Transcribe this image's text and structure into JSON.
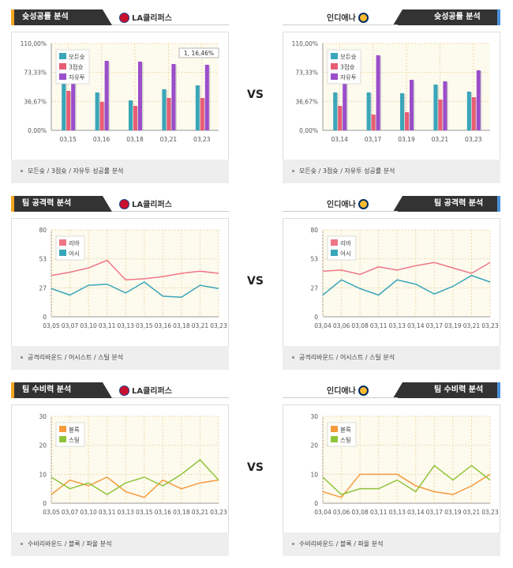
{
  "vs_label": "VS",
  "colors": {
    "header_dark": "#333333",
    "accent_left": "#f5a623",
    "accent_right": "#4a90d9",
    "plot_bg": "#fdfaee",
    "grid": "#f0d9a8"
  },
  "panels": [
    {
      "id": "p1",
      "side": "left",
      "title": "슛성공률 분석",
      "team": "LA클리퍼스",
      "team_icon": "clippers-logo-icon",
      "caption": "모든슛 / 3점슛 / 자유투 성공률 분석"
    },
    {
      "id": "p2",
      "side": "right",
      "title": "슛성공률 분석",
      "team": "인디애나",
      "team_icon": "pacers-logo-icon",
      "caption": "모든슛 / 3점슛 / 자유투 성공률 분석"
    },
    {
      "id": "p3",
      "side": "left",
      "title": "팀 공격력 분석",
      "team": "LA클리퍼스",
      "team_icon": "clippers-logo-icon",
      "caption": "공격리바운드 / 어시스트 / 스틸 분석"
    },
    {
      "id": "p4",
      "side": "right",
      "title": "팀 공격력 분석",
      "team": "인디애나",
      "team_icon": "pacers-logo-icon",
      "caption": "공격리바운드 / 어시스트 / 스틸 분석"
    },
    {
      "id": "p5",
      "side": "left",
      "title": "팀 수비력 분석",
      "team": "LA클리퍼스",
      "team_icon": "clippers-logo-icon",
      "caption": "수비리바운드 / 블록 / 파울 분석"
    },
    {
      "id": "p6",
      "side": "right",
      "title": "팀 수비력 분석",
      "team": "인디애나",
      "team_icon": "pacers-logo-icon",
      "caption": "수비리바운드 / 블록 / 파울 분석"
    }
  ],
  "chart_data": [
    {
      "type": "bar",
      "categories": [
        "03,15",
        "03,16",
        "03,18",
        "03,21",
        "03,23"
      ],
      "yticks": [
        "0,00%",
        "36,67%",
        "73,33%",
        "110,00%"
      ],
      "ylim": [
        0,
        110
      ],
      "grid": true,
      "legend": "top-left",
      "tooltip": "1, 16,46%",
      "series": [
        {
          "name": "모든슛",
          "color": "#3aa6b9",
          "values": [
            60,
            48,
            38,
            52,
            57
          ]
        },
        {
          "name": "3점슛",
          "color": "#e85d75",
          "values": [
            50,
            36,
            31,
            41,
            41
          ]
        },
        {
          "name": "자유투",
          "color": "#9b4dca",
          "values": [
            95,
            88,
            87,
            84,
            83
          ]
        }
      ]
    },
    {
      "type": "bar",
      "categories": [
        "03,14",
        "03,17",
        "03,19",
        "03,21",
        "03,23"
      ],
      "yticks": [
        "0,00%",
        "36,67%",
        "73,33%",
        "110,00%"
      ],
      "ylim": [
        0,
        110
      ],
      "grid": true,
      "legend": "top-left",
      "series": [
        {
          "name": "모든슛",
          "color": "#3aa6b9",
          "values": [
            48,
            48,
            47,
            58,
            49
          ]
        },
        {
          "name": "3점슛",
          "color": "#e85d75",
          "values": [
            31,
            20,
            23,
            39,
            42
          ]
        },
        {
          "name": "자유투",
          "color": "#9b4dca",
          "values": [
            68,
            95,
            64,
            62,
            76
          ]
        }
      ]
    },
    {
      "type": "line",
      "categories": [
        "03,05",
        "03,07",
        "03,10",
        "03,11",
        "03,13",
        "03,15",
        "03,16",
        "03,18",
        "03,21",
        "03,23"
      ],
      "yticks": [
        "0",
        "27",
        "53",
        "80"
      ],
      "ylim": [
        0,
        80
      ],
      "grid": true,
      "legend": "top-left",
      "series": [
        {
          "name": "리바",
          "color": "#ee7785",
          "values": [
            38,
            41,
            45,
            52,
            34,
            35,
            37,
            40,
            42,
            40
          ]
        },
        {
          "name": "어시",
          "color": "#3aa6b9",
          "values": [
            26,
            20,
            29,
            30,
            22,
            32,
            19,
            18,
            29,
            26
          ]
        }
      ]
    },
    {
      "type": "line",
      "categories": [
        "03,04",
        "03,06",
        "03,08",
        "03,11",
        "03,13",
        "03,14",
        "03,17",
        "03,19",
        "03,21",
        "03,23"
      ],
      "yticks": [
        "0",
        "27",
        "53",
        "80"
      ],
      "ylim": [
        0,
        80
      ],
      "grid": true,
      "legend": "top-left",
      "series": [
        {
          "name": "리바",
          "color": "#ee7785",
          "values": [
            42,
            43,
            39,
            46,
            43,
            47,
            50,
            45,
            40,
            50
          ]
        },
        {
          "name": "어시",
          "color": "#3aa6b9",
          "values": [
            20,
            34,
            26,
            20,
            34,
            30,
            21,
            28,
            38,
            32
          ]
        }
      ]
    },
    {
      "type": "line",
      "categories": [
        "03,05",
        "03,07",
        "03,10",
        "03,11",
        "03,13",
        "03,15",
        "03,16",
        "03,18",
        "03,21",
        "03,23"
      ],
      "yticks": [
        "0",
        "10",
        "20",
        "30"
      ],
      "ylim": [
        0,
        30
      ],
      "grid": true,
      "legend": "top-left",
      "series": [
        {
          "name": "블록",
          "color": "#f59a3c",
          "values": [
            3,
            8,
            6,
            9,
            4,
            2,
            8,
            5,
            7,
            8
          ]
        },
        {
          "name": "스틸",
          "color": "#8fc43a",
          "values": [
            9,
            5,
            7,
            3,
            7,
            9,
            6,
            10,
            15,
            8
          ]
        }
      ]
    },
    {
      "type": "line",
      "categories": [
        "03,04",
        "03,06",
        "03,08",
        "03,11",
        "03,13",
        "03,14",
        "03,17",
        "03,19",
        "03,21",
        "03,23"
      ],
      "yticks": [
        "0",
        "10",
        "20",
        "30"
      ],
      "ylim": [
        0,
        30
      ],
      "grid": true,
      "legend": "top-left",
      "series": [
        {
          "name": "블록",
          "color": "#f59a3c",
          "values": [
            4,
            2,
            10,
            10,
            10,
            6,
            4,
            3,
            6,
            10
          ]
        },
        {
          "name": "스틸",
          "color": "#8fc43a",
          "values": [
            9,
            3,
            5,
            5,
            8,
            4,
            13,
            8,
            13,
            8
          ]
        }
      ]
    }
  ]
}
